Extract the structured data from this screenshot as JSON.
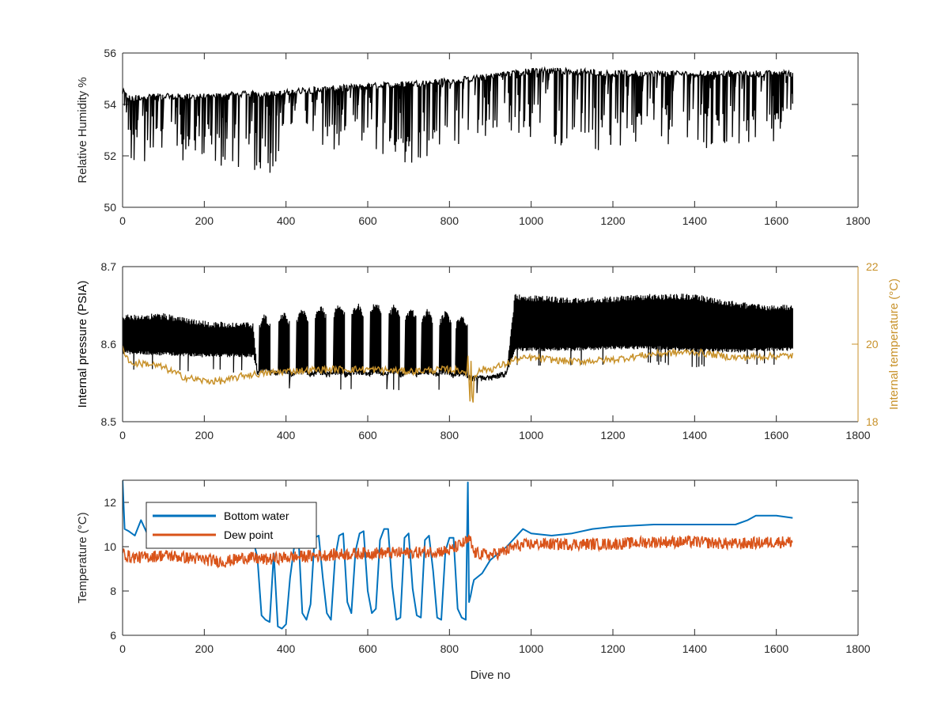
{
  "figure": {
    "shared_xlabel": "Dive no"
  },
  "chart_data": [
    {
      "type": "line",
      "ylabel": "Relative Humidity %",
      "xlim": [
        0,
        1800
      ],
      "ylim": [
        50,
        56
      ],
      "xticks": [
        0,
        200,
        400,
        600,
        800,
        1000,
        1200,
        1400,
        1600,
        1800
      ],
      "yticks": [
        50,
        52,
        54,
        56
      ],
      "grid": false,
      "series": [
        {
          "color": "#000000",
          "style": "dense-spiky",
          "x": [
            0,
            20,
            50,
            100,
            200,
            300,
            380,
            420,
            500,
            600,
            700,
            800,
            860,
            950,
            1000,
            1100,
            1200,
            1300,
            1400,
            1500,
            1600,
            1640
          ],
          "base": [
            54.5,
            54.2,
            54.3,
            54.3,
            54.3,
            54.4,
            54.4,
            54.5,
            54.6,
            54.7,
            54.8,
            54.9,
            55.0,
            55.2,
            55.3,
            55.3,
            55.2,
            55.2,
            55.2,
            55.2,
            55.2,
            55.2
          ],
          "low": [
            54.2,
            51.4,
            51.4,
            51.8,
            51.5,
            51.5,
            51.2,
            53.6,
            52.0,
            52.3,
            51.6,
            52.4,
            52.3,
            53.0,
            52.4,
            52.3,
            52.1,
            52.5,
            52.3,
            52.3,
            52.4,
            53.6
          ]
        }
      ]
    },
    {
      "type": "line",
      "ylabel": "Internal pressure (PSIA)",
      "y2label": "Internal temperature (°C)",
      "xlim": [
        0,
        1800
      ],
      "ylim": [
        8.5,
        8.7
      ],
      "y2lim": [
        18,
        22
      ],
      "xticks": [
        0,
        200,
        400,
        600,
        800,
        1000,
        1200,
        1400,
        1600,
        1800
      ],
      "yticks": [
        8.5,
        8.6,
        8.7
      ],
      "y2ticks": [
        18,
        20,
        22
      ],
      "grid": false,
      "series": [
        {
          "axis": "left",
          "color": "#000000",
          "style": "pressure-bands",
          "x": [
            0,
            100,
            200,
            320,
            330,
            450,
            600,
            800,
            850,
            900,
            940,
            960,
            1100,
            1200,
            1300,
            1400,
            1500,
            1600,
            1640
          ],
          "base": [
            8.592,
            8.59,
            8.588,
            8.588,
            8.568,
            8.565,
            8.565,
            8.565,
            8.56,
            8.56,
            8.566,
            8.596,
            8.596,
            8.598,
            8.598,
            8.595,
            8.594,
            8.596,
            8.596
          ],
          "top": [
            8.638,
            8.64,
            8.63,
            8.628,
            8.568,
            8.565,
            8.565,
            8.565,
            8.56,
            8.56,
            8.566,
            8.665,
            8.66,
            8.662,
            8.665,
            8.665,
            8.655,
            8.65,
            8.652
          ],
          "bursts": [
            {
              "x": 348,
              "peak": 8.64
            },
            {
              "x": 395,
              "peak": 8.645
            },
            {
              "x": 440,
              "peak": 8.648
            },
            {
              "x": 485,
              "peak": 8.652
            },
            {
              "x": 530,
              "peak": 8.655
            },
            {
              "x": 575,
              "peak": 8.655
            },
            {
              "x": 620,
              "peak": 8.658
            },
            {
              "x": 665,
              "peak": 8.653
            },
            {
              "x": 705,
              "peak": 8.65
            },
            {
              "x": 745,
              "peak": 8.648
            },
            {
              "x": 790,
              "peak": 8.645
            },
            {
              "x": 830,
              "peak": 8.642
            }
          ]
        },
        {
          "axis": "right",
          "color": "#c8922b",
          "style": "noisy-line",
          "x": [
            0,
            20,
            60,
            100,
            150,
            200,
            250,
            300,
            350,
            400,
            500,
            600,
            700,
            800,
            840,
            850,
            860,
            880,
            900,
            940,
            960,
            1000,
            1100,
            1200,
            1300,
            1400,
            1500,
            1600,
            1640
          ],
          "y": [
            19.9,
            19.5,
            19.5,
            19.4,
            19.15,
            19.05,
            19.05,
            19.2,
            19.25,
            19.3,
            19.35,
            19.35,
            19.3,
            19.35,
            19.3,
            19.0,
            19.2,
            19.35,
            19.35,
            19.5,
            19.6,
            19.65,
            19.55,
            19.6,
            19.75,
            19.8,
            19.65,
            19.7,
            19.7
          ]
        }
      ]
    },
    {
      "type": "line",
      "ylabel": "Temperature (°C)",
      "xlabel": "Dive no",
      "xlim": [
        0,
        1800
      ],
      "ylim": [
        6,
        13
      ],
      "xticks": [
        0,
        200,
        400,
        600,
        800,
        1000,
        1200,
        1400,
        1600,
        1800
      ],
      "yticks": [
        6,
        8,
        10,
        12
      ],
      "grid": false,
      "legend": "top-left",
      "series": [
        {
          "name": "Bottom water",
          "color": "#0072bd",
          "x": [
            0,
            5,
            15,
            30,
            45,
            60,
            100,
            150,
            200,
            250,
            320,
            330,
            340,
            350,
            360,
            370,
            380,
            390,
            400,
            410,
            420,
            430,
            440,
            450,
            460,
            470,
            480,
            490,
            500,
            510,
            520,
            530,
            540,
            550,
            560,
            570,
            580,
            590,
            600,
            610,
            620,
            630,
            640,
            650,
            660,
            670,
            680,
            690,
            700,
            710,
            720,
            730,
            740,
            750,
            760,
            770,
            780,
            790,
            800,
            810,
            820,
            830,
            840,
            845,
            848,
            852,
            856,
            860,
            880,
            900,
            920,
            940,
            960,
            980,
            1000,
            1050,
            1100,
            1150,
            1200,
            1300,
            1400,
            1500,
            1530,
            1550,
            1600,
            1640
          ],
          "y": [
            13.0,
            10.8,
            10.7,
            10.5,
            11.2,
            10.6,
            10.3,
            10.3,
            10.4,
            10.3,
            10.3,
            9.5,
            6.9,
            6.7,
            6.6,
            9.7,
            6.4,
            6.3,
            6.5,
            8.6,
            10.0,
            10.6,
            7.0,
            6.7,
            7.4,
            10.4,
            10.5,
            8.6,
            7.0,
            6.7,
            9.5,
            10.5,
            10.6,
            7.5,
            7.0,
            9.8,
            10.6,
            10.7,
            8.0,
            7.0,
            7.2,
            10.3,
            10.8,
            10.8,
            8.2,
            6.7,
            6.8,
            10.4,
            10.6,
            8.1,
            6.9,
            6.8,
            10.3,
            10.5,
            8.9,
            6.8,
            6.7,
            9.8,
            10.4,
            10.4,
            7.2,
            6.8,
            6.7,
            12.9,
            7.5,
            7.8,
            8.2,
            8.5,
            8.8,
            9.4,
            9.7,
            10.0,
            10.4,
            10.8,
            10.6,
            10.5,
            10.6,
            10.8,
            10.9,
            11.0,
            11.0,
            11.0,
            11.2,
            11.4,
            11.4,
            11.3
          ]
        },
        {
          "name": "Dew point",
          "color": "#d95319",
          "x": [
            0,
            20,
            50,
            100,
            200,
            250,
            300,
            350,
            400,
            500,
            600,
            700,
            800,
            850,
            860,
            900,
            940,
            960,
            1000,
            1100,
            1200,
            1300,
            1400,
            1500,
            1600,
            1640
          ],
          "y": [
            9.8,
            9.6,
            9.6,
            9.7,
            9.5,
            9.4,
            9.6,
            9.5,
            9.6,
            9.7,
            9.8,
            9.8,
            9.9,
            10.4,
            9.8,
            9.7,
            9.9,
            10.1,
            10.2,
            10.2,
            10.2,
            10.3,
            10.3,
            10.2,
            10.3,
            10.3
          ],
          "noise": 0.55
        }
      ]
    }
  ]
}
